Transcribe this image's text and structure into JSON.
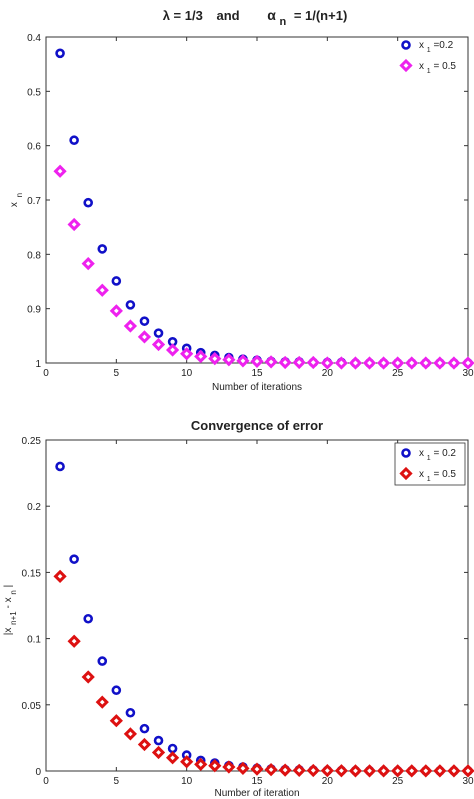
{
  "chart_data": [
    {
      "type": "scatter",
      "title": {
        "lambda": "λ = 1/3",
        "joiner": "and",
        "alpha": "α",
        "alpha_sub": "n",
        "alpha_rest": "= 1/(n+1)"
      },
      "xlabel": "Number of iterations",
      "ylabel": {
        "main": "x",
        "sub": "n"
      },
      "xlim": [
        0,
        30
      ],
      "ylim": [
        0.4,
        1
      ],
      "y_reversed": true,
      "xticks": [
        "0",
        "5",
        "10",
        "15",
        "20",
        "25",
        "30"
      ],
      "yticks": [
        "0.4",
        "0.5",
        "0.6",
        "0.7",
        "0.8",
        "0.9",
        "1"
      ],
      "grid": false,
      "legend_position": "top-right",
      "x": [
        1,
        2,
        3,
        4,
        5,
        6,
        7,
        8,
        9,
        10,
        11,
        12,
        13,
        14,
        15,
        16,
        17,
        18,
        19,
        20,
        21,
        22,
        23,
        24,
        25,
        26,
        27,
        28,
        29,
        30
      ],
      "series": [
        {
          "legend": {
            "pre": "x",
            "sub": "1",
            "post": "=0.2"
          },
          "marker": "circle",
          "color": "#1010c8",
          "values": [
            0.43,
            0.59,
            0.705,
            0.79,
            0.849,
            0.893,
            0.923,
            0.945,
            0.961,
            0.973,
            0.981,
            0.986,
            0.99,
            0.993,
            0.995,
            0.997,
            0.998,
            0.998,
            0.999,
            0.999,
            0.999,
            1,
            1,
            1,
            1,
            1,
            1,
            1,
            1,
            1
          ]
        },
        {
          "legend": {
            "pre": "x",
            "sub": "1",
            "post": " = 0.5"
          },
          "marker": "diamond",
          "color": "#ee22ee",
          "values": [
            0.647,
            0.745,
            0.817,
            0.866,
            0.904,
            0.932,
            0.952,
            0.966,
            0.976,
            0.983,
            0.988,
            0.992,
            0.994,
            0.996,
            0.997,
            0.998,
            0.999,
            0.999,
            0.999,
            1,
            1,
            1,
            1,
            1,
            1,
            1,
            1,
            1,
            1,
            1
          ]
        }
      ]
    },
    {
      "type": "scatter",
      "title": {
        "text": "Convergence of error"
      },
      "xlabel": "Number of iteration",
      "ylabel": {
        "pre": "|x",
        "sub1": "n+1",
        "mid": " - x",
        "sub2": "n",
        "post": "|"
      },
      "xlim": [
        0,
        30
      ],
      "ylim": [
        0,
        0.25
      ],
      "y_reversed": false,
      "xticks": [
        "0",
        "5",
        "10",
        "15",
        "20",
        "25",
        "30"
      ],
      "yticks": [
        "0",
        "0.05",
        "0.1",
        "0.15",
        "0.2",
        "0.25"
      ],
      "grid": false,
      "legend_position": "top-right",
      "x": [
        1,
        2,
        3,
        4,
        5,
        6,
        7,
        8,
        9,
        10,
        11,
        12,
        13,
        14,
        15,
        16,
        17,
        18,
        19,
        20,
        21,
        22,
        23,
        24,
        25,
        26,
        27,
        28,
        29,
        30
      ],
      "series": [
        {
          "legend": {
            "pre": "x",
            "sub": "1",
            "post": " = 0.2"
          },
          "marker": "circle",
          "color": "#1010c8",
          "values": [
            0.23,
            0.16,
            0.115,
            0.083,
            0.061,
            0.044,
            0.032,
            0.023,
            0.017,
            0.012,
            0.008,
            0.006,
            0.004,
            0.003,
            0.002,
            0.0015,
            0.001,
            0.0008,
            0.0006,
            0.0004,
            0.0003,
            0.0002,
            0.0002,
            0.0001,
            0.0001,
            0.0001,
            0.0001,
            0.0001,
            0.0001,
            0.0001
          ]
        },
        {
          "legend": {
            "pre": "x",
            "sub": "1",
            "post": " = 0.5"
          },
          "marker": "diamond",
          "color": "#dd1111",
          "values": [
            0.147,
            0.098,
            0.071,
            0.052,
            0.038,
            0.028,
            0.02,
            0.014,
            0.01,
            0.007,
            0.005,
            0.004,
            0.003,
            0.002,
            0.0014,
            0.001,
            0.0007,
            0.0005,
            0.0004,
            0.0003,
            0.0002,
            0.0001,
            0.0001,
            0.0001,
            0.0001,
            0.0001,
            0.0001,
            0.0001,
            0.0001,
            0.0001
          ]
        }
      ]
    }
  ]
}
